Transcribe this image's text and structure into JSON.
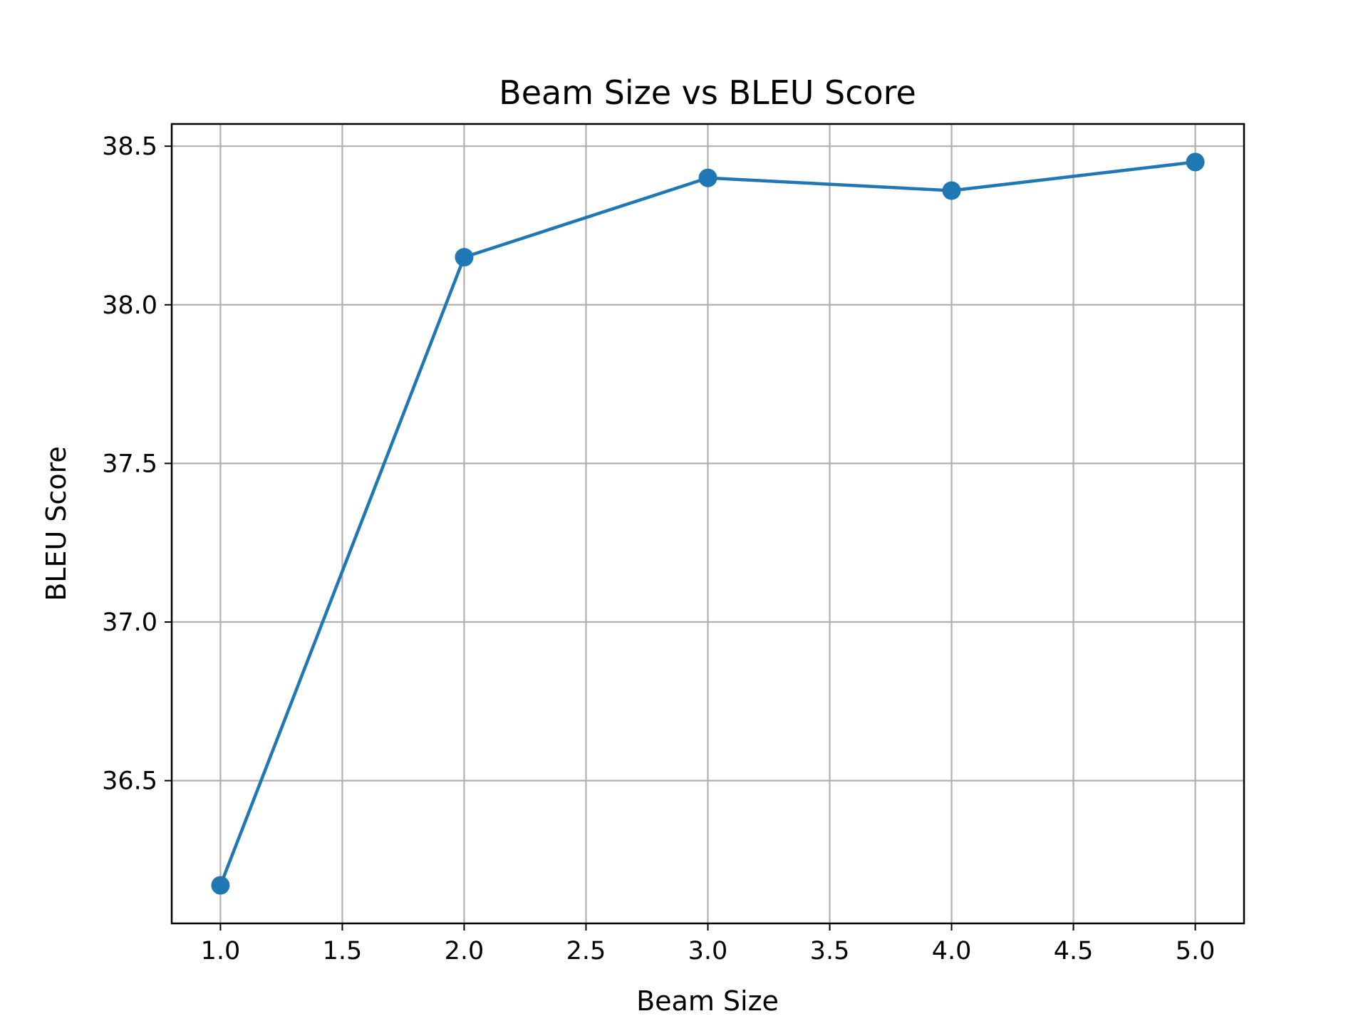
{
  "chart_data": {
    "type": "line",
    "title": "Beam Size vs BLEU Score",
    "xlabel": "Beam Size",
    "ylabel": "BLEU Score",
    "xlim": [
      0.8,
      5.2
    ],
    "ylim": [
      36.05,
      38.57
    ],
    "xticks": [
      1.0,
      1.5,
      2.0,
      2.5,
      3.0,
      3.5,
      4.0,
      4.5,
      5.0
    ],
    "yticks": [
      36.5,
      37.0,
      37.5,
      38.0,
      38.5
    ],
    "grid": true,
    "series": [
      {
        "x": [
          1,
          2,
          3,
          4,
          5
        ],
        "y": [
          36.17,
          38.15,
          38.4,
          38.36,
          38.45
        ],
        "color": "#1f77b4",
        "marker": "circle"
      }
    ]
  }
}
